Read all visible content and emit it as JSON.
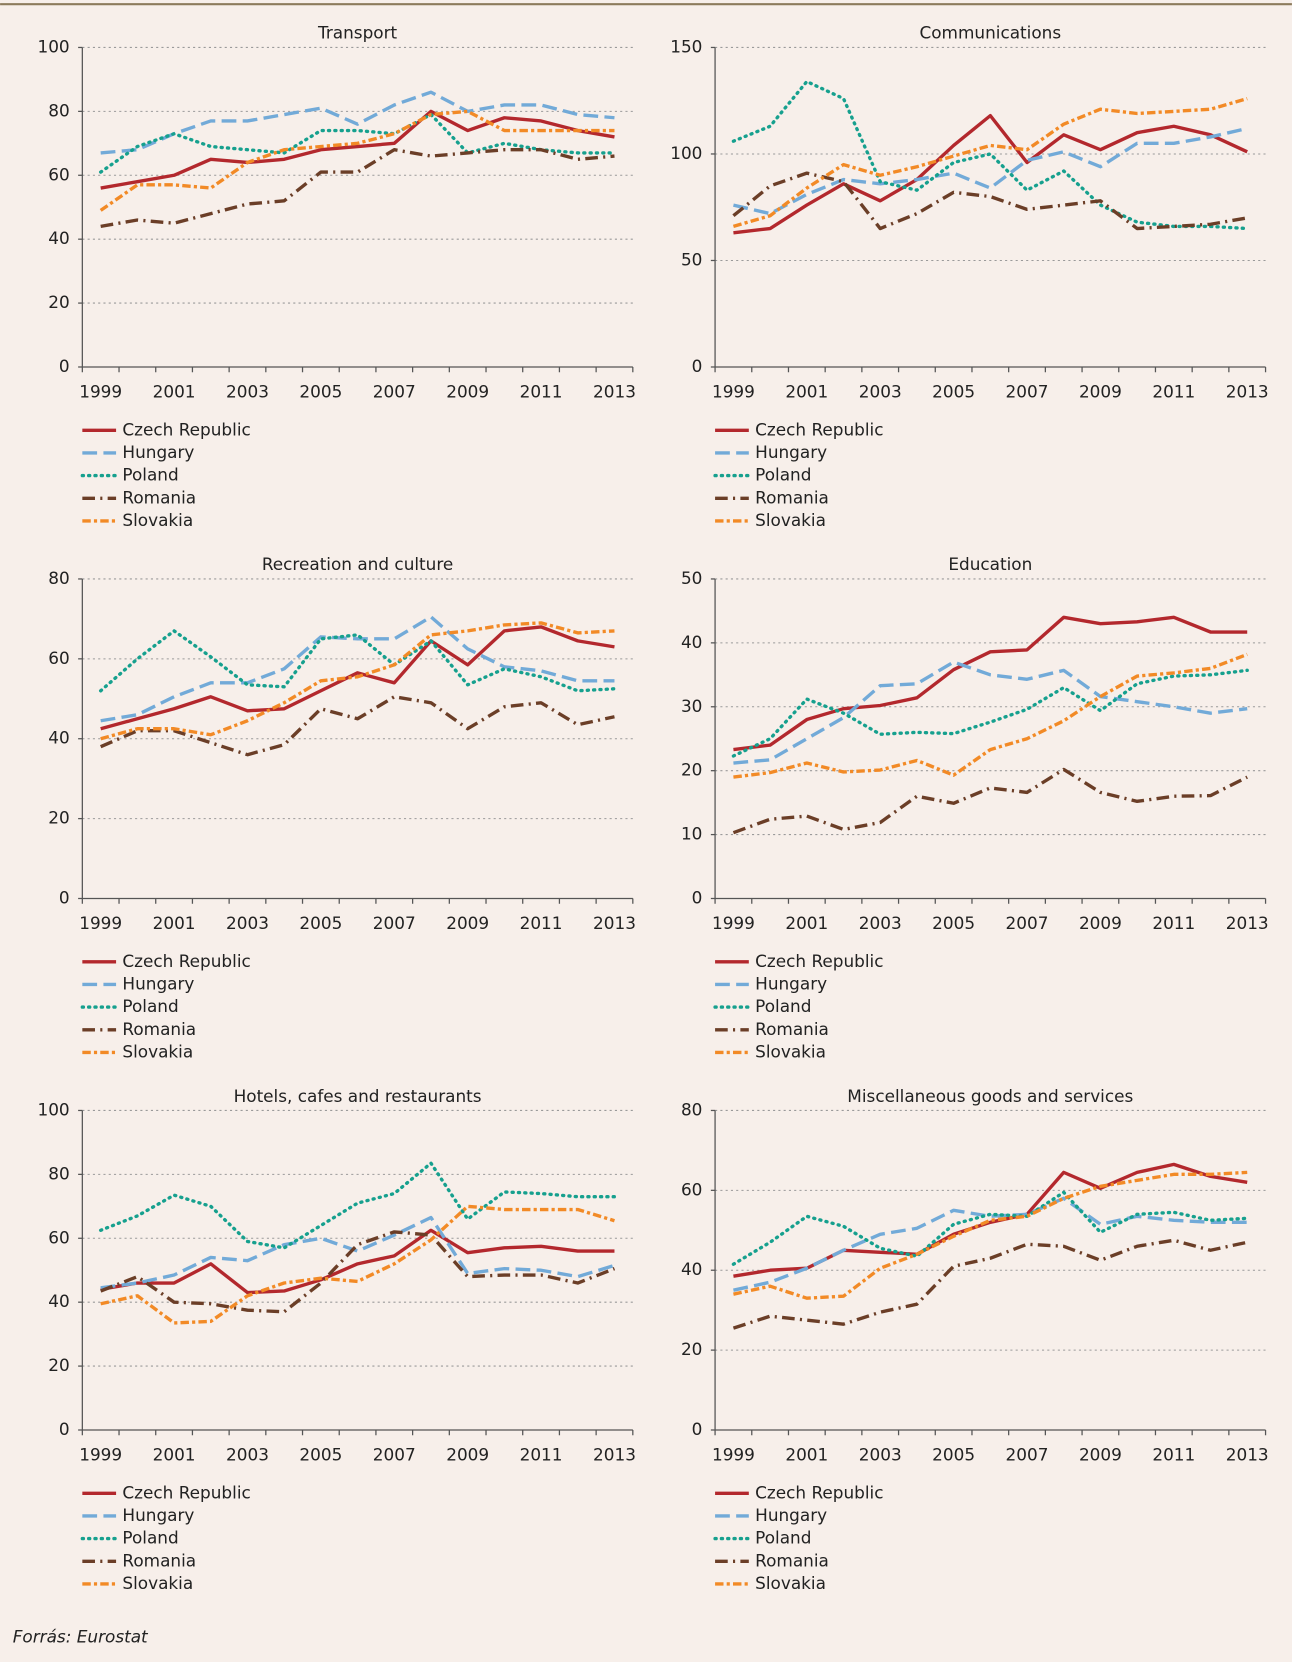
{
  "chart_data": [
    {
      "type": "line",
      "title": "Transport",
      "categories": [
        "1999",
        null,
        "2001",
        null,
        "2003",
        null,
        "2005",
        null,
        "2007",
        null,
        "2009",
        null,
        "2011",
        null,
        "2013"
      ],
      "ylim": [
        0,
        100
      ],
      "yticks": [
        0,
        20,
        40,
        60,
        80,
        100
      ],
      "grid": true,
      "legend": "bottom",
      "series": [
        {
          "name": "Czech Republic",
          "color": "#b3282d",
          "linestyle": "solid",
          "values": [
            56,
            58,
            60,
            65,
            64,
            65,
            68,
            69,
            70,
            80,
            74,
            78,
            77,
            74,
            72
          ]
        },
        {
          "name": "Hungary",
          "color": "#72aad8",
          "linestyle": "dashed",
          "values": [
            67,
            68,
            73,
            77,
            77,
            79,
            81,
            76,
            82,
            86,
            80,
            82,
            82,
            79,
            78
          ]
        },
        {
          "name": "Poland",
          "color": "#16a08e",
          "linestyle": "dotted",
          "values": [
            61,
            69,
            73,
            69,
            68,
            67,
            74,
            74,
            73,
            79,
            67,
            70,
            68,
            67,
            67
          ]
        },
        {
          "name": "Romania",
          "color": "#6b3e27",
          "linestyle": "dashdot",
          "values": [
            44,
            46,
            45,
            48,
            51,
            52,
            61,
            61,
            68,
            66,
            67,
            68,
            68,
            65,
            66
          ]
        },
        {
          "name": "Slovakia",
          "color": "#f28a26",
          "linestyle": "longdashdot",
          "values": [
            49,
            57,
            57,
            56,
            64,
            68,
            69,
            70,
            73,
            79,
            80,
            74,
            74,
            74,
            74
          ]
        }
      ]
    },
    {
      "type": "line",
      "title": "Communications",
      "categories": [
        "1999",
        null,
        "2001",
        null,
        "2003",
        null,
        "2005",
        null,
        "2007",
        null,
        "2009",
        null,
        "2011",
        null,
        "2013"
      ],
      "ylim": [
        0,
        150
      ],
      "yticks": [
        0,
        50,
        100,
        150
      ],
      "grid": true,
      "legend": "bottom",
      "series": [
        {
          "name": "Czech Republic",
          "color": "#b3282d",
          "linestyle": "solid",
          "values": [
            63,
            65,
            76,
            86,
            78,
            88,
            104,
            118,
            96,
            109,
            102,
            110,
            113,
            109,
            101
          ]
        },
        {
          "name": "Hungary",
          "color": "#72aad8",
          "linestyle": "dashed",
          "values": [
            76,
            72,
            81,
            88,
            86,
            88,
            91,
            84,
            97,
            101,
            94,
            105,
            105,
            108,
            112
          ]
        },
        {
          "name": "Poland",
          "color": "#16a08e",
          "linestyle": "dotted",
          "values": [
            106,
            113,
            134,
            126,
            87,
            83,
            96,
            100,
            83,
            92,
            76,
            68,
            66,
            66,
            65
          ]
        },
        {
          "name": "Romania",
          "color": "#6b3e27",
          "linestyle": "dashdot",
          "values": [
            71,
            85,
            91,
            87,
            65,
            72,
            82,
            80,
            74,
            76,
            78,
            65,
            66,
            67,
            70
          ]
        },
        {
          "name": "Slovakia",
          "color": "#f28a26",
          "linestyle": "longdashdot",
          "values": [
            66,
            71,
            84,
            95,
            90,
            94,
            99,
            104,
            102,
            114,
            121,
            119,
            120,
            121,
            126
          ]
        }
      ]
    },
    {
      "type": "line",
      "title": "Recreation and culture",
      "categories": [
        "1999",
        null,
        "2001",
        null,
        "2003",
        null,
        "2005",
        null,
        "2007",
        null,
        "2009",
        null,
        "2011",
        null,
        "2013"
      ],
      "ylim": [
        0,
        80
      ],
      "yticks": [
        0,
        20,
        40,
        60,
        80
      ],
      "grid": true,
      "legend": "bottom",
      "series": [
        {
          "name": "Czech Republic",
          "color": "#b3282d",
          "linestyle": "solid",
          "values": [
            42.5,
            45,
            47.5,
            50.5,
            47,
            47.5,
            52,
            56.5,
            54,
            64.5,
            58.5,
            67,
            68,
            64.5,
            63
          ]
        },
        {
          "name": "Hungary",
          "color": "#72aad8",
          "linestyle": "dashed",
          "values": [
            44.5,
            46,
            50.5,
            54,
            54,
            57.5,
            65.5,
            65,
            65,
            70.5,
            62.5,
            58,
            57,
            54.5,
            54.5
          ]
        },
        {
          "name": "Poland",
          "color": "#16a08e",
          "linestyle": "dotted",
          "values": [
            52,
            60,
            67,
            60.5,
            53.5,
            53,
            65,
            66,
            58.5,
            64.5,
            53.5,
            57.5,
            55.5,
            52,
            52.5
          ]
        },
        {
          "name": "Romania",
          "color": "#6b3e27",
          "linestyle": "dashdot",
          "values": [
            38,
            42,
            42,
            39,
            36,
            38.5,
            47.5,
            45,
            50.5,
            49,
            42.5,
            48,
            49,
            43.5,
            45.5
          ]
        },
        {
          "name": "Slovakia",
          "color": "#f28a26",
          "linestyle": "longdashdot",
          "values": [
            40,
            42.5,
            42.5,
            41,
            44.5,
            49,
            54.5,
            55.5,
            58.5,
            66,
            67,
            68.5,
            69,
            66.5,
            67
          ]
        }
      ]
    },
    {
      "type": "line",
      "title": "Education",
      "categories": [
        "1999",
        null,
        "2001",
        null,
        "2003",
        null,
        "2005",
        null,
        "2007",
        null,
        "2009",
        null,
        "2011",
        null,
        "2013"
      ],
      "ylim": [
        0,
        50
      ],
      "yticks": [
        0,
        10,
        20,
        30,
        40,
        50
      ],
      "grid": true,
      "legend": "bottom",
      "series": [
        {
          "name": "Czech Republic",
          "color": "#b3282d",
          "linestyle": "solid",
          "values": [
            23.3,
            24,
            28,
            29.7,
            30.2,
            31.4,
            35.8,
            38.6,
            38.9,
            44,
            43,
            43.3,
            44,
            41.7,
            41.7
          ]
        },
        {
          "name": "Hungary",
          "color": "#72aad8",
          "linestyle": "dashed",
          "values": [
            21.2,
            21.7,
            25,
            28.3,
            33.3,
            33.6,
            37,
            35,
            34.3,
            35.7,
            31.6,
            30.8,
            30,
            29,
            29.7
          ]
        },
        {
          "name": "Poland",
          "color": "#16a08e",
          "linestyle": "dotted",
          "values": [
            22.3,
            25,
            31.2,
            29,
            25.7,
            26,
            25.8,
            27.6,
            29.6,
            33,
            29.4,
            33.6,
            34.8,
            35,
            35.7
          ]
        },
        {
          "name": "Romania",
          "color": "#6b3e27",
          "linestyle": "dashdot",
          "values": [
            10.3,
            12.4,
            12.9,
            10.8,
            11.9,
            16,
            14.9,
            17.3,
            16.6,
            20.2,
            16.6,
            15.2,
            16,
            16.1,
            19
          ]
        },
        {
          "name": "Slovakia",
          "color": "#f28a26",
          "linestyle": "longdashdot",
          "values": [
            19,
            19.7,
            21.2,
            19.8,
            20.1,
            21.6,
            19.3,
            23.3,
            25,
            27.8,
            31.6,
            34.8,
            35.3,
            36,
            38.2
          ]
        }
      ]
    },
    {
      "type": "line",
      "title": "Hotels, cafes and restaurants",
      "categories": [
        "1999",
        null,
        "2001",
        null,
        "2003",
        null,
        "2005",
        null,
        "2007",
        null,
        "2009",
        null,
        "2011",
        null,
        "2013"
      ],
      "ylim": [
        0,
        100
      ],
      "yticks": [
        0,
        20,
        40,
        60,
        80,
        100
      ],
      "grid": true,
      "legend": "bottom",
      "series": [
        {
          "name": "Czech Republic",
          "color": "#b3282d",
          "linestyle": "solid",
          "values": [
            44,
            46,
            46,
            52,
            43,
            43.5,
            47,
            52,
            54.5,
            62.5,
            55.5,
            57,
            57.5,
            56,
            56
          ]
        },
        {
          "name": "Hungary",
          "color": "#72aad8",
          "linestyle": "dashed",
          "values": [
            44.5,
            46,
            48.5,
            54,
            53,
            58,
            60,
            56,
            61,
            66.5,
            49,
            50.5,
            50,
            48,
            51.5
          ]
        },
        {
          "name": "Poland",
          "color": "#16a08e",
          "linestyle": "dotted",
          "values": [
            62.5,
            67,
            73.5,
            70,
            59,
            57,
            64,
            71,
            74,
            83.5,
            66,
            74.5,
            74,
            73,
            73
          ]
        },
        {
          "name": "Romania",
          "color": "#6b3e27",
          "linestyle": "dashdot",
          "values": [
            43.5,
            48,
            40,
            39.5,
            37.5,
            37,
            46,
            58,
            62,
            61,
            48,
            48.5,
            48.5,
            46,
            50.5
          ]
        },
        {
          "name": "Slovakia",
          "color": "#f28a26",
          "linestyle": "longdashdot",
          "values": [
            39.5,
            42,
            33.5,
            34,
            42,
            46,
            47.5,
            46.5,
            52,
            59.5,
            70,
            69,
            69,
            69,
            65.5
          ]
        }
      ]
    },
    {
      "type": "line",
      "title": "Miscellaneous goods and services",
      "categories": [
        "1999",
        null,
        "2001",
        null,
        "2003",
        null,
        "2005",
        null,
        "2007",
        null,
        "2009",
        null,
        "2011",
        null,
        "2013"
      ],
      "ylim": [
        0,
        80
      ],
      "yticks": [
        0,
        20,
        40,
        60,
        80
      ],
      "grid": true,
      "legend": "bottom",
      "series": [
        {
          "name": "Czech Republic",
          "color": "#b3282d",
          "linestyle": "solid",
          "values": [
            38.5,
            40,
            40.5,
            45,
            44.5,
            44,
            49,
            52,
            54,
            64.5,
            60.5,
            64.5,
            66.5,
            63.5,
            62
          ]
        },
        {
          "name": "Hungary",
          "color": "#72aad8",
          "linestyle": "dashed",
          "values": [
            35,
            37,
            40.5,
            45,
            49,
            50.5,
            55,
            53.5,
            54,
            58,
            51.5,
            53.5,
            52.5,
            52,
            52
          ]
        },
        {
          "name": "Poland",
          "color": "#16a08e",
          "linestyle": "dotted",
          "values": [
            41.5,
            47,
            53.5,
            51,
            45.5,
            43.5,
            51.5,
            54,
            53.5,
            59.5,
            49.5,
            54,
            54.5,
            52.5,
            53
          ]
        },
        {
          "name": "Romania",
          "color": "#6b3e27",
          "linestyle": "dashdot",
          "values": [
            25.5,
            28.5,
            27.5,
            26.5,
            29.5,
            31.5,
            41,
            43,
            46.5,
            46,
            42.5,
            46,
            47.5,
            45,
            47
          ]
        },
        {
          "name": "Slovakia",
          "color": "#f28a26",
          "linestyle": "longdashdot",
          "values": [
            34,
            36,
            33,
            33.5,
            40.5,
            44,
            48.5,
            52.5,
            53.5,
            58,
            61,
            62.5,
            64,
            64,
            64.5
          ]
        }
      ]
    }
  ],
  "source": "Forrás: Eurostat"
}
